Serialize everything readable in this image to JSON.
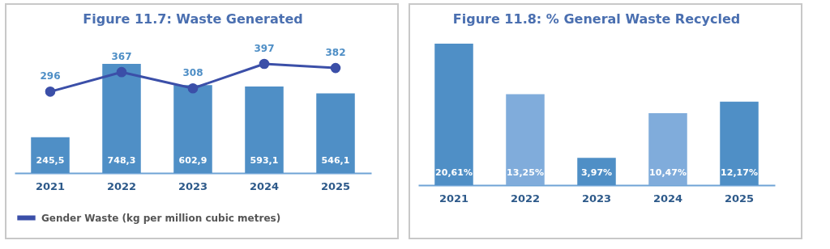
{
  "chart_data": [
    {
      "type": "bar",
      "title": "Figure 11.7: Waste Generated",
      "categories": [
        "2021",
        "2022",
        "2023",
        "2024",
        "2025"
      ],
      "legend": "bottom",
      "marker": "circle",
      "series": [
        {
          "color": "#4f8fc6",
          "values": [
            245.5,
            748.3,
            602.9,
            593.1,
            546.1
          ],
          "value_labels": [
            "245,5",
            "748,3",
            "602,9",
            "593,1",
            "546,1"
          ]
        },
        {
          "type": "line",
          "axis": "y2",
          "name": "Gender Waste (kg per million cubic metres)",
          "color": "#3b4fa8",
          "values": [
            296,
            367,
            308,
            397,
            382
          ],
          "value_labels": [
            "296",
            "367",
            "308",
            "397",
            "382"
          ]
        }
      ]
    },
    {
      "type": "bar",
      "title": "Figure 11.8: % General Waste Recycled",
      "categories": [
        "2021",
        "2022",
        "2023",
        "2024",
        "2025"
      ],
      "series": [
        {
          "colors": [
            "#4f8fc6",
            "#80acdb",
            "#4f8fc6",
            "#80acdb",
            "#4f8fc6"
          ],
          "values": [
            20.61,
            13.25,
            3.97,
            10.47,
            12.17
          ],
          "value_labels": [
            "20,61%",
            "13,25%",
            "3,97%",
            "10,47%",
            "12,17%"
          ]
        }
      ]
    }
  ]
}
